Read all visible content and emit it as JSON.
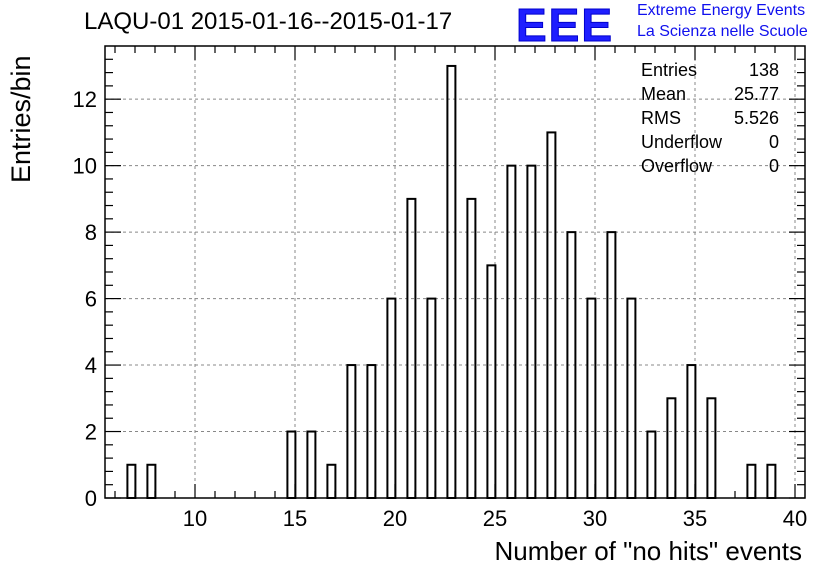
{
  "title": "LAQU-01 2015-01-16--2015-01-17",
  "logo": {
    "mark": "EEE",
    "line1": "Extreme Energy Events",
    "line2": "La Scienza nelle Scuole",
    "color": "#1e1eff"
  },
  "stats": [
    {
      "label": "Entries",
      "value": "138"
    },
    {
      "label": "Mean",
      "value": "25.77"
    },
    {
      "label": "RMS",
      "value": "5.526"
    },
    {
      "label": "Underflow",
      "value": "0"
    },
    {
      "label": "Overflow",
      "value": "0"
    }
  ],
  "chart_data": {
    "type": "bar",
    "title": "LAQU-01 2015-01-16--2015-01-17",
    "xlabel": "Number of \"no hits\" events",
    "ylabel": "Entries/bin",
    "xlim": [
      5.5,
      40.5
    ],
    "ylim": [
      0,
      13.6
    ],
    "x_ticks": [
      10,
      15,
      20,
      25,
      30,
      35,
      40
    ],
    "y_ticks": [
      0,
      2,
      4,
      6,
      8,
      10,
      12
    ],
    "grid": true,
    "x": [
      7,
      8,
      15,
      16,
      17,
      18,
      19,
      20,
      21,
      22,
      23,
      24,
      25,
      26,
      27,
      28,
      29,
      30,
      31,
      32,
      33,
      34,
      35,
      36,
      38,
      39
    ],
    "values": [
      1,
      1,
      2,
      2,
      1,
      4,
      4,
      6,
      9,
      6,
      13,
      9,
      7,
      10,
      10,
      11,
      8,
      6,
      8,
      6,
      2,
      3,
      4,
      3,
      1,
      1
    ]
  }
}
